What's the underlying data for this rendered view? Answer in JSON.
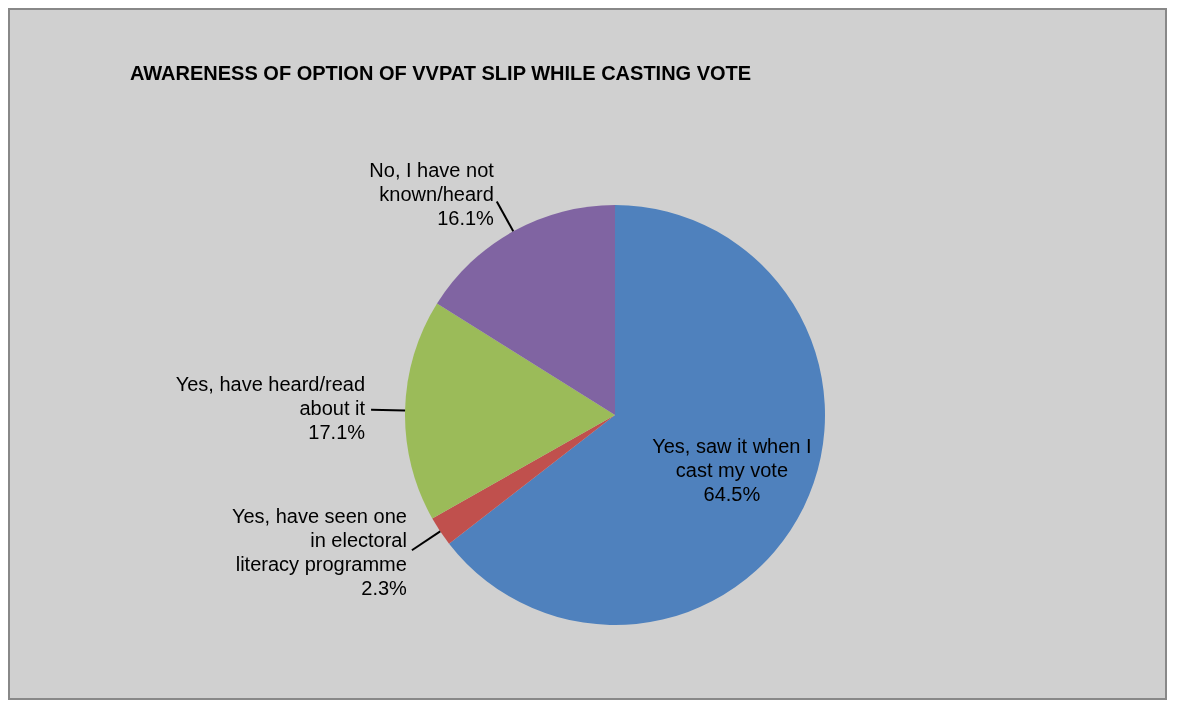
{
  "chart_data": {
    "type": "pie",
    "title": "AWARENESS OF OPTION OF VVPAT SLIP WHILE CASTING VOTE",
    "categories": [
      "Yes, saw it when I cast my vote",
      "Yes, have seen one in electoral literacy programme",
      "Yes, have heard/read about it",
      "No, I have not known/heard"
    ],
    "values": [
      64.5,
      2.3,
      17.1,
      16.1
    ],
    "value_labels": [
      "64.5%",
      "2.3%",
      "17.1%",
      "16.1%"
    ],
    "colors": [
      "#4f81bd",
      "#c0504d",
      "#9bbb59",
      "#8064a2"
    ],
    "legend": false
  }
}
